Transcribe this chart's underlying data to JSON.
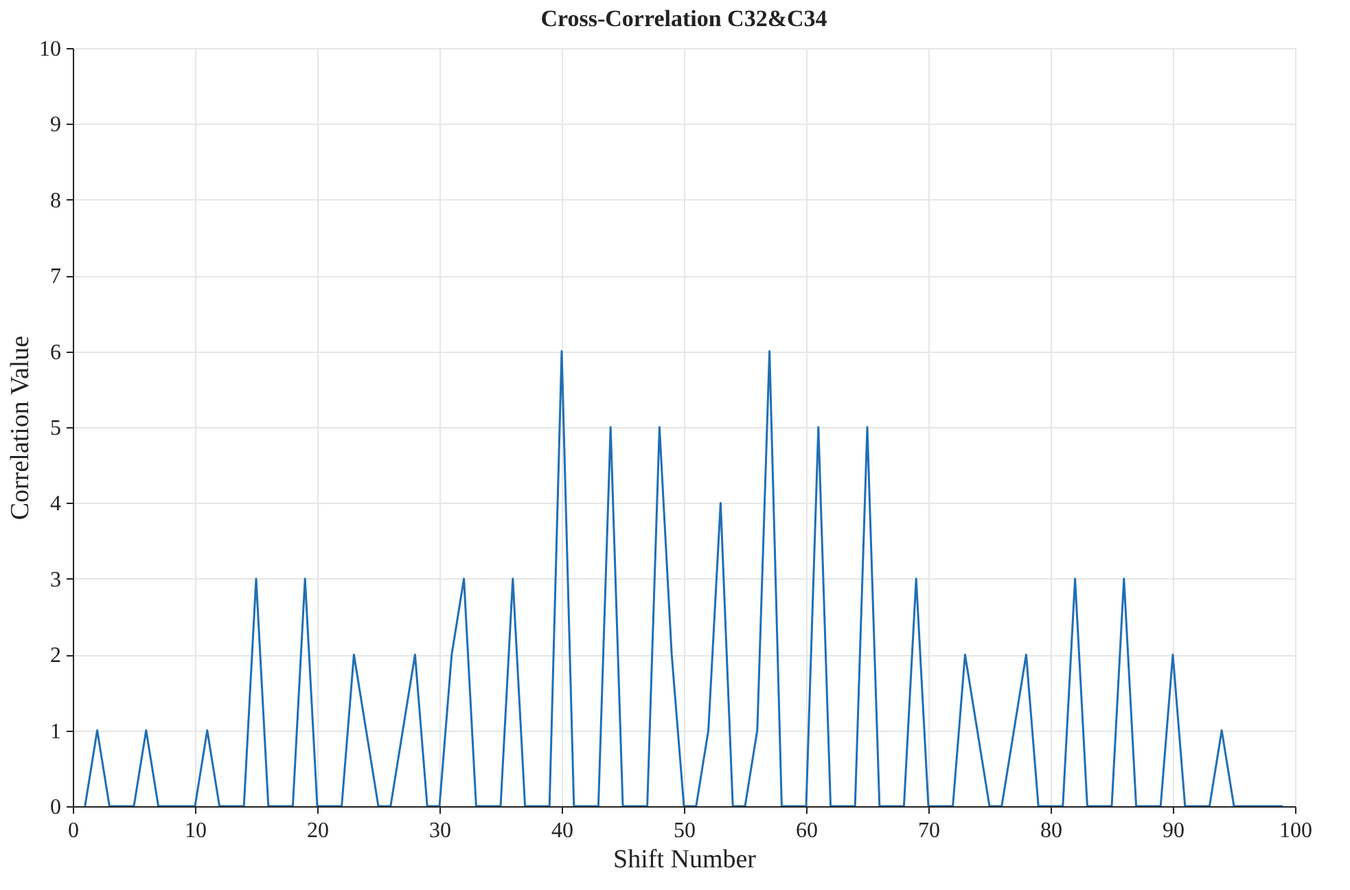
{
  "chart_data": {
    "type": "line",
    "title": "Cross-Correlation C32&C34",
    "xlabel": "Shift Number",
    "ylabel": "Correlation Value",
    "x": [
      1,
      2,
      3,
      4,
      5,
      6,
      7,
      8,
      9,
      10,
      11,
      12,
      13,
      14,
      15,
      16,
      17,
      18,
      19,
      20,
      21,
      22,
      23,
      24,
      25,
      26,
      27,
      28,
      29,
      30,
      31,
      32,
      33,
      34,
      35,
      36,
      37,
      38,
      39,
      40,
      41,
      42,
      43,
      44,
      45,
      46,
      47,
      48,
      49,
      50,
      51,
      52,
      53,
      54,
      55,
      56,
      57,
      58,
      59,
      60,
      61,
      62,
      63,
      64,
      65,
      66,
      67,
      68,
      69,
      70,
      71,
      72,
      73,
      74,
      75,
      76,
      77,
      78,
      79,
      80,
      81,
      82,
      83,
      84,
      85,
      86,
      87,
      88,
      89,
      90,
      91,
      92,
      93,
      94,
      95,
      96,
      97,
      98,
      99
    ],
    "series": [
      {
        "color": "#1f6fb4",
        "values": [
          0,
          1,
          0,
          0,
          0,
          1,
          0,
          0,
          0,
          0,
          1,
          0,
          0,
          0,
          3,
          0,
          0,
          0,
          3,
          0,
          0,
          0,
          2,
          1,
          0,
          0,
          1,
          2,
          0,
          0,
          2,
          3,
          0,
          0,
          0,
          3,
          0,
          0,
          0,
          6,
          0,
          0,
          0,
          5,
          0,
          0,
          0,
          5,
          2,
          0,
          0,
          1,
          4,
          0,
          0,
          1,
          6,
          0,
          0,
          0,
          5,
          0,
          0,
          0,
          5,
          0,
          0,
          0,
          3,
          0,
          0,
          0,
          2,
          1,
          0,
          0,
          1,
          2,
          0,
          0,
          0,
          3,
          0,
          0,
          0,
          3,
          0,
          0,
          0,
          2,
          0,
          0,
          0,
          1,
          0,
          0,
          0,
          0,
          0
        ]
      }
    ],
    "xlim": [
      0,
      100
    ],
    "xticks": [
      0,
      10,
      20,
      30,
      40,
      50,
      60,
      70,
      80,
      90,
      100
    ],
    "ylim": [
      0,
      10
    ],
    "yticks": [
      0,
      1,
      2,
      3,
      4,
      5,
      6,
      7,
      8,
      9,
      10
    ],
    "grid": true,
    "marker": "none",
    "line_style": "solid"
  }
}
